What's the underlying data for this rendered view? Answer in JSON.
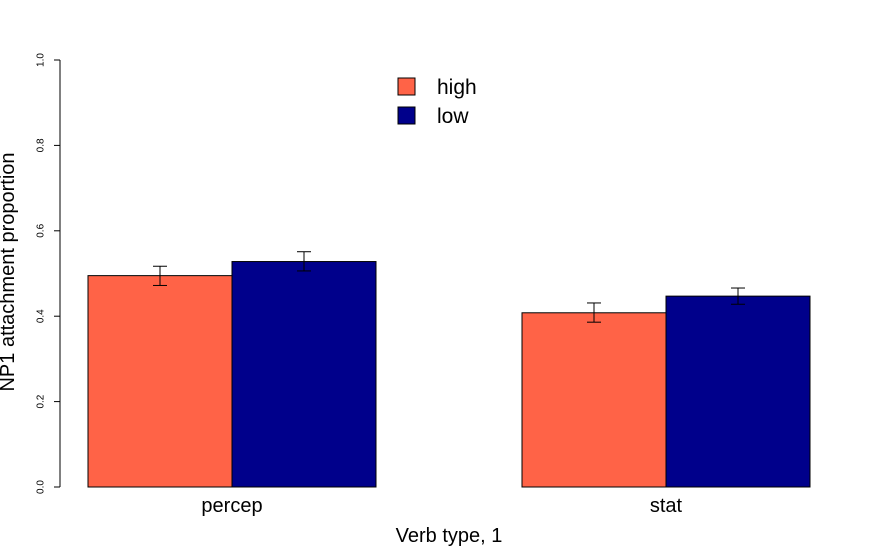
{
  "chart_data": {
    "type": "bar",
    "title": "",
    "xlabel": "Verb type, 1",
    "ylabel": "NP1 attachment proportion",
    "ylim": [
      0,
      1
    ],
    "yticks": [
      "0.0",
      "0.2",
      "0.4",
      "0.6",
      "0.8",
      "1.0"
    ],
    "categories": [
      "percep",
      "stat"
    ],
    "series": [
      {
        "name": "high",
        "color": "#FF6347",
        "values": [
          0.495,
          0.408
        ],
        "err_low": [
          0.472,
          0.386
        ],
        "err_high": [
          0.517,
          0.431
        ]
      },
      {
        "name": "low",
        "color": "#00008B",
        "values": [
          0.528,
          0.447
        ],
        "err_low": [
          0.506,
          0.428
        ],
        "err_high": [
          0.551,
          0.466
        ]
      }
    ],
    "legend_position": "top-center",
    "grid": false
  }
}
